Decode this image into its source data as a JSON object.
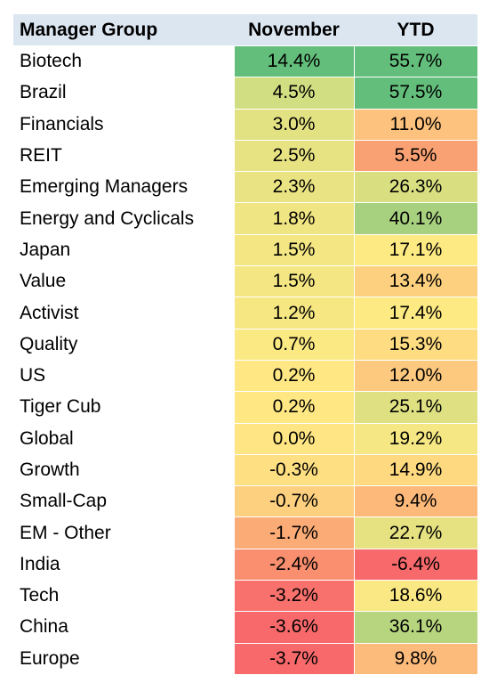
{
  "chart_data": {
    "type": "table",
    "columns": [
      "Manager Group",
      "November",
      "YTD"
    ],
    "rows": [
      {
        "group": "Biotech",
        "november": "14.4%",
        "ytd": "55.7%",
        "november_color": "#63be7b",
        "ytd_color": "#63be7b"
      },
      {
        "group": "Brazil",
        "november": "4.5%",
        "ytd": "57.5%",
        "november_color": "#d2de82",
        "ytd_color": "#63be7b"
      },
      {
        "group": "Financials",
        "november": "3.0%",
        "ytd": "11.0%",
        "november_color": "#e3e283",
        "ytd_color": "#fdc27d"
      },
      {
        "group": "REIT",
        "november": "2.5%",
        "ytd": "5.5%",
        "november_color": "#e8e382",
        "ytd_color": "#f9a172"
      },
      {
        "group": "Emerging Managers",
        "november": "2.3%",
        "ytd": "26.3%",
        "november_color": "#eae383",
        "ytd_color": "#d9df81"
      },
      {
        "group": "Energy and Cyclicals",
        "november": "1.8%",
        "ytd": "40.1%",
        "november_color": "#f0e583",
        "ytd_color": "#a8d17f"
      },
      {
        "group": "Japan",
        "november": "1.5%",
        "ytd": "17.1%",
        "november_color": "#f3e683",
        "ytd_color": "#feea83"
      },
      {
        "group": "Value",
        "november": "1.5%",
        "ytd": "13.4%",
        "november_color": "#f3e683",
        "ytd_color": "#fdd07f"
      },
      {
        "group": "Activist",
        "november": "1.2%",
        "ytd": "17.4%",
        "november_color": "#f6e783",
        "ytd_color": "#feea83"
      },
      {
        "group": "Quality",
        "november": "0.7%",
        "ytd": "15.3%",
        "november_color": "#fbe983",
        "ytd_color": "#fedc81"
      },
      {
        "group": "US",
        "november": "0.2%",
        "ytd": "12.0%",
        "november_color": "#ffe884",
        "ytd_color": "#fdc97e"
      },
      {
        "group": "Tiger Cub",
        "november": "0.2%",
        "ytd": "25.1%",
        "november_color": "#ffe884",
        "ytd_color": "#dee082"
      },
      {
        "group": "Global",
        "november": "0.0%",
        "ytd": "19.2%",
        "november_color": "#ffe583",
        "ytd_color": "#f5e783"
      },
      {
        "group": "Growth",
        "november": "-0.3%",
        "ytd": "14.9%",
        "november_color": "#fedf82",
        "ytd_color": "#fed980"
      },
      {
        "group": "Small-Cap",
        "november": "-0.7%",
        "ytd": "9.4%",
        "november_color": "#fdd07f",
        "ytd_color": "#fcb97a"
      },
      {
        "group": "EM - Other",
        "november": "-1.7%",
        "ytd": "22.7%",
        "november_color": "#fbab76",
        "ytd_color": "#e6e282"
      },
      {
        "group": "India",
        "november": "-2.4%",
        "ytd": "-6.4%",
        "november_color": "#f98f6f",
        "ytd_color": "#f8696b"
      },
      {
        "group": "Tech",
        "november": "-3.2%",
        "ytd": "18.6%",
        "november_color": "#f8716c",
        "ytd_color": "#f9e883"
      },
      {
        "group": "China",
        "november": "-3.6%",
        "ytd": "36.1%",
        "november_color": "#f8696b",
        "ytd_color": "#b7d57f"
      },
      {
        "group": "Europe",
        "november": "-3.7%",
        "ytd": "9.8%",
        "november_color": "#f8696b",
        "ytd_color": "#fcbb7b"
      }
    ]
  }
}
